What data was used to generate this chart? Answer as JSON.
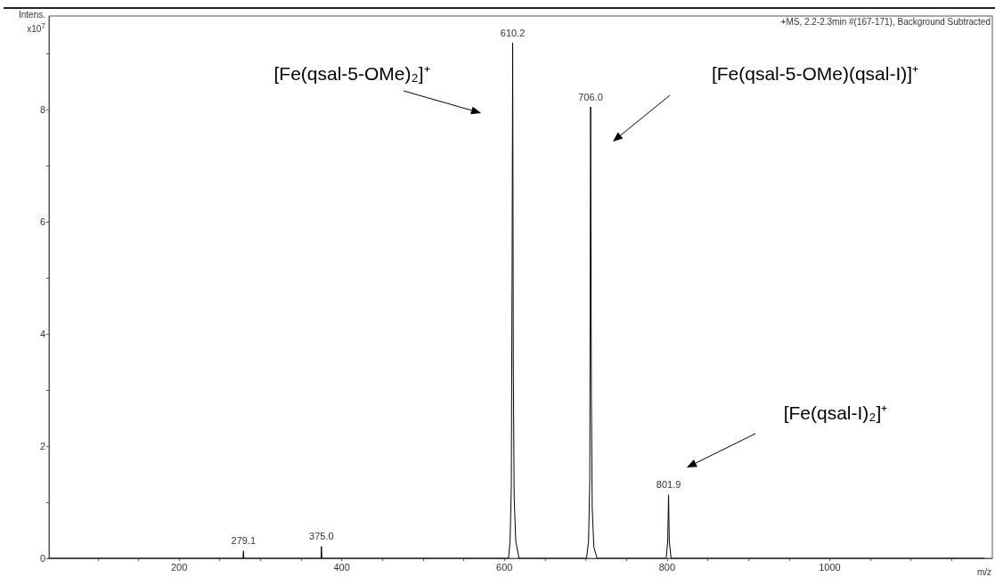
{
  "chart_data": {
    "type": "line",
    "subtitle": "+MS, 2.2-2.3min #(167-171), Background Subtracted",
    "xlabel": "m/z",
    "ylabel": "Intens.\nx10$^{7}$",
    "x": [
      40,
      278.6,
      279.1,
      279.6,
      374.5,
      375.0,
      375.5,
      605,
      607,
      608.5,
      609.5,
      610.2,
      611,
      612,
      614,
      618,
      701,
      703.5,
      705,
      706.0,
      707,
      708,
      710,
      714,
      799,
      800.8,
      801.9,
      802.8,
      805,
      1190
    ],
    "series": [
      {
        "color": "#000000",
        "values": [
          0,
          0,
          0.13,
          0,
          0,
          0.21,
          0,
          0,
          0.3,
          1.3,
          5.2,
          9.19,
          3.4,
          1.1,
          0.3,
          0,
          0,
          0.3,
          1.4,
          8.05,
          2.8,
          0.9,
          0.2,
          0,
          0,
          0.3,
          1.13,
          0.3,
          0,
          0
        ]
      }
    ],
    "xlim": [
      40,
      1200
    ],
    "ylim": [
      0,
      9.67
    ],
    "xticks": [
      {
        "value": 100,
        "label": null
      },
      {
        "value": 150,
        "label": null
      },
      200,
      {
        "value": 250,
        "label": null
      },
      {
        "value": 300,
        "label": null
      },
      {
        "value": 350,
        "label": null
      },
      400,
      {
        "value": 450,
        "label": null
      },
      {
        "value": 500,
        "label": null
      },
      {
        "value": 550,
        "label": null
      },
      600,
      {
        "value": 650,
        "label": null
      },
      {
        "value": 700,
        "label": null
      },
      {
        "value": 750,
        "label": null
      },
      800,
      {
        "value": 850,
        "label": null
      },
      {
        "value": 900,
        "label": null
      },
      {
        "value": 950,
        "label": null
      },
      1000,
      {
        "value": 1050,
        "label": null
      },
      {
        "value": 1100,
        "label": null
      },
      {
        "value": 1150,
        "label": null
      }
    ],
    "yticks": [
      0,
      {
        "value": 1,
        "label": null
      },
      2,
      {
        "value": 3,
        "label": null
      },
      4,
      {
        "value": 5,
        "label": null
      },
      6,
      {
        "value": 7,
        "label": null
      },
      8,
      {
        "value": 9,
        "label": null
      }
    ],
    "grid": false,
    "marker": "none",
    "line_style": "solid",
    "annotations": [
      {
        "text": "279.1",
        "x": 279.1,
        "y": 0.13
      },
      {
        "text": "375.0",
        "x": 375.0,
        "y": 0.21
      },
      {
        "text": "610.2",
        "x": 610.2,
        "y": 9.19
      },
      {
        "text": "706.0",
        "x": 706.0,
        "y": 8.05
      },
      {
        "text": "801.9",
        "x": 801.9,
        "y": 1.13
      },
      "[Fe(qsal-5-OMe)₂]⁺",
      "[Fe(qsal-5-OMe)(qsal-I)]⁺",
      "[Fe(qsal-I)₂]⁺"
    ]
  }
}
